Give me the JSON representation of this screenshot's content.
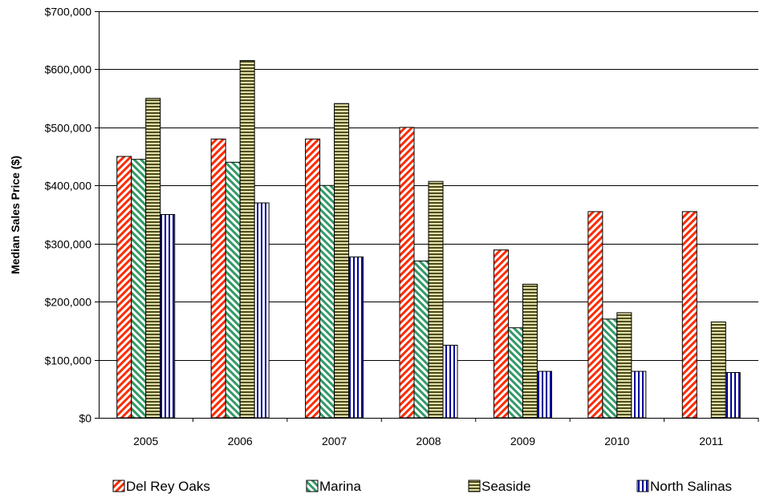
{
  "chart_data": {
    "type": "bar",
    "title": "",
    "xlabel": "",
    "ylabel": "Median Sales Price ($)",
    "ylim": [
      0,
      700000
    ],
    "yticks": [
      0,
      100000,
      200000,
      300000,
      400000,
      500000,
      600000,
      700000
    ],
    "ytick_labels": [
      "$0",
      "$100,000",
      "$200,000",
      "$300,000",
      "$400,000",
      "$500,000",
      "$600,000",
      "$700,000"
    ],
    "categories": [
      "2005",
      "2006",
      "2007",
      "2008",
      "2009",
      "2010",
      "2011"
    ],
    "grid": true,
    "legend_position": "bottom",
    "series": [
      {
        "name": "Del Rey Oaks",
        "color": "#ff2a00",
        "pattern": "diagonal-stripes",
        "values": [
          450000,
          480000,
          480000,
          500000,
          289000,
          355000,
          355000
        ]
      },
      {
        "name": "Marina",
        "color": "#339966",
        "pattern": "reverse-diagonal-stripes",
        "values": [
          445000,
          440000,
          400000,
          270000,
          155000,
          170000,
          null
        ]
      },
      {
        "name": "Seaside",
        "color": "#4d4d1f",
        "pattern": "horizontal-stripes",
        "values": [
          550000,
          615000,
          541000,
          407000,
          230000,
          181000,
          165000
        ]
      },
      {
        "name": "North Salinas",
        "color": "#000099",
        "pattern": "vertical-stripes",
        "values": [
          350000,
          370000,
          277000,
          125000,
          80000,
          80000,
          78000
        ]
      }
    ]
  }
}
